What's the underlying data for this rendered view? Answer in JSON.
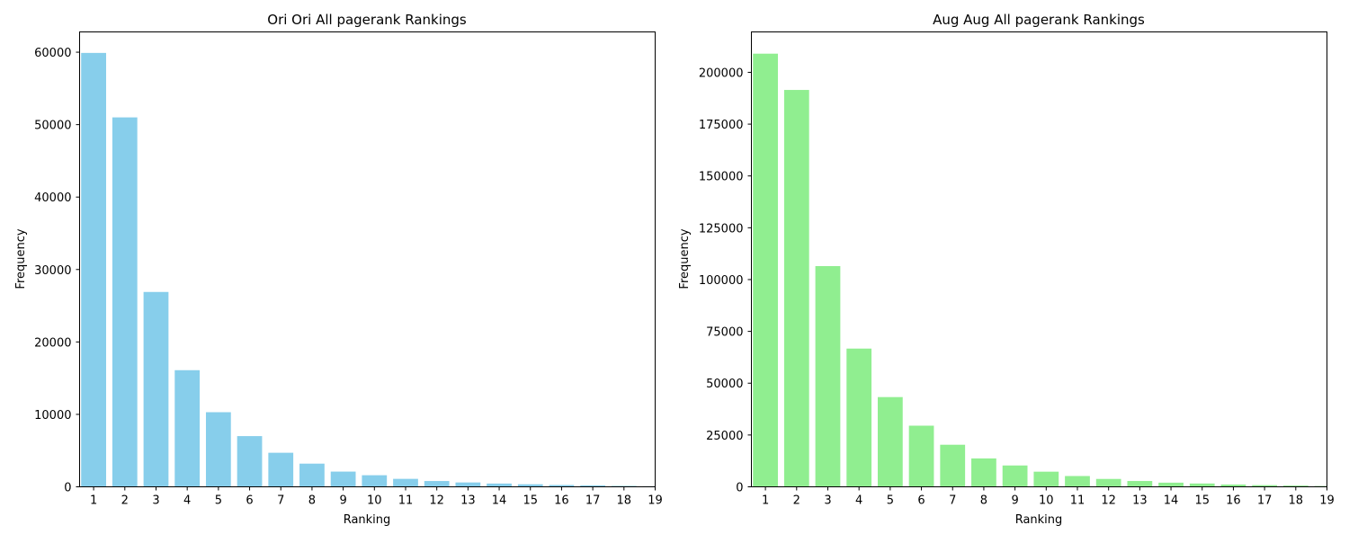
{
  "chart_data": [
    {
      "type": "bar",
      "title": "Ori Ori All pagerank Rankings",
      "xlabel": "Ranking",
      "ylabel": "Frequency",
      "categories": [
        "1",
        "2",
        "3",
        "4",
        "5",
        "6",
        "7",
        "8",
        "9",
        "10",
        "11",
        "12",
        "13",
        "14",
        "15",
        "16",
        "17",
        "18",
        "19"
      ],
      "values": [
        59900,
        51000,
        26900,
        16100,
        10300,
        7000,
        4700,
        3200,
        2100,
        1600,
        1100,
        800,
        600,
        450,
        350,
        250,
        200,
        130,
        80
      ],
      "ylim": [
        0,
        62800
      ],
      "yticks": [
        0,
        10000,
        20000,
        30000,
        40000,
        50000,
        60000
      ],
      "color": "#87ceeb",
      "grid": false
    },
    {
      "type": "bar",
      "title": "Aug Aug All pagerank Rankings",
      "xlabel": "Ranking",
      "ylabel": "Frequency",
      "categories": [
        "1",
        "2",
        "3",
        "4",
        "5",
        "6",
        "7",
        "8",
        "9",
        "10",
        "11",
        "12",
        "13",
        "14",
        "15",
        "16",
        "17",
        "18",
        "19"
      ],
      "values": [
        209000,
        191500,
        106500,
        66700,
        43300,
        29500,
        20300,
        13700,
        10300,
        7300,
        5200,
        3800,
        2800,
        2000,
        1600,
        1100,
        800,
        600,
        400
      ],
      "ylim": [
        0,
        219500
      ],
      "yticks": [
        0,
        25000,
        50000,
        75000,
        100000,
        125000,
        150000,
        175000,
        200000
      ],
      "color": "#90ee90",
      "grid": false
    }
  ]
}
